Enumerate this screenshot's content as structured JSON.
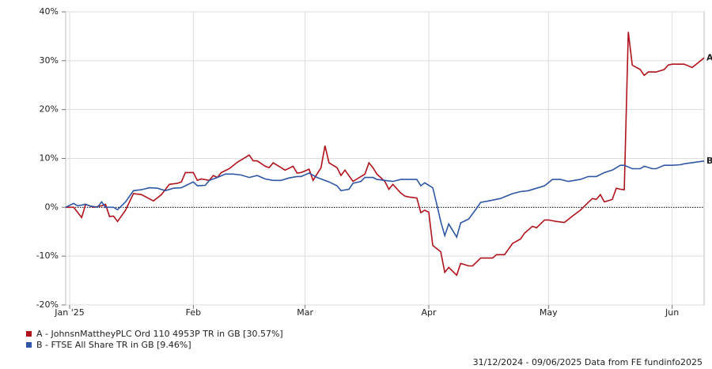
{
  "chart_data": {
    "type": "line",
    "xlim": [
      0,
      160
    ],
    "xticks": [
      {
        "value": 1,
        "label": "Jan '25"
      },
      {
        "value": 32,
        "label": "Feb"
      },
      {
        "value": 60,
        "label": "Mar"
      },
      {
        "value": 91,
        "label": "Apr"
      },
      {
        "value": 121,
        "label": "May"
      },
      {
        "value": 152,
        "label": "Jun"
      }
    ],
    "ylim": [
      -20,
      40
    ],
    "yticks": [
      {
        "value": -20,
        "label": "-20%"
      },
      {
        "value": -10,
        "label": "-10%"
      },
      {
        "value": 0,
        "label": "0%"
      },
      {
        "value": 10,
        "label": "10%"
      },
      {
        "value": 20,
        "label": "20%"
      },
      {
        "value": 30,
        "label": "30%"
      },
      {
        "value": 40,
        "label": "40%"
      }
    ],
    "grid": true,
    "series": [
      {
        "name": "A - JohnsnMattheyPLC Ord 110 4953P TR in GB [30.57%]",
        "tag": "A",
        "color": "#b0121b",
        "x": [
          0,
          2,
          4,
          5,
          6,
          7,
          9,
          10,
          11,
          12,
          13,
          15,
          17,
          19,
          22,
          24,
          26,
          28,
          29,
          30,
          32,
          33,
          34,
          36,
          37,
          38,
          39,
          41,
          43,
          45,
          46,
          47,
          48,
          50,
          51,
          52,
          54,
          55,
          57,
          58,
          59,
          61,
          62,
          64,
          65,
          66,
          68,
          69,
          70,
          72,
          73,
          75,
          76,
          77,
          78,
          80,
          81,
          82,
          84,
          85,
          86,
          88,
          89,
          90,
          91,
          92,
          94,
          95,
          96,
          98,
          99,
          101,
          102,
          104,
          105,
          107,
          108,
          110,
          112,
          114,
          115,
          117,
          118,
          120,
          121,
          123,
          125,
          127,
          129,
          131,
          132,
          133,
          134,
          135,
          137,
          138,
          139,
          140,
          141,
          142,
          144,
          145,
          146,
          148,
          150,
          151,
          152,
          154,
          155,
          157,
          160
        ],
        "values": [
          0,
          0,
          -2.1,
          0.6,
          0.3,
          0,
          0.3,
          0.6,
          -1.9,
          -1.8,
          -2.9,
          -0.6,
          2.8,
          2.6,
          1.3,
          2.6,
          4.7,
          4.9,
          5.2,
          7.1,
          7.1,
          5.5,
          5.8,
          5.5,
          6.5,
          6.1,
          7.1,
          7.9,
          9.2,
          10.2,
          10.7,
          9.5,
          9.5,
          8.4,
          8.1,
          9.1,
          8.1,
          7.6,
          8.4,
          7.0,
          7.1,
          7.8,
          5.5,
          8.1,
          12.6,
          9.1,
          8.1,
          6.5,
          7.6,
          5.3,
          5.8,
          6.8,
          9.1,
          8.1,
          6.8,
          5.3,
          3.7,
          4.7,
          2.9,
          2.3,
          2.1,
          1.9,
          -1.1,
          -0.6,
          -1.0,
          -7.8,
          -9.1,
          -13.3,
          -12.3,
          -13.9,
          -11.5,
          -12.0,
          -12.0,
          -10.4,
          -10.4,
          -10.4,
          -9.7,
          -9.7,
          -7.4,
          -6.5,
          -5.3,
          -3.9,
          -4.2,
          -2.6,
          -2.6,
          -2.9,
          -3.1,
          -1.8,
          -0.6,
          1.0,
          1.8,
          1.6,
          2.6,
          1.1,
          1.6,
          3.9,
          3.7,
          3.6,
          35.9,
          29.1,
          28.2,
          27.0,
          27.7,
          27.7,
          28.2,
          29.1,
          29.3,
          29.3,
          29.3,
          28.6,
          30.57
        ]
      },
      {
        "name": "B - FTSE All Share TR in GB [9.46%]",
        "tag": "B",
        "color": "#2f56a5",
        "x": [
          0,
          2,
          3,
          5,
          6,
          8,
          9,
          10,
          12,
          13,
          15,
          17,
          19,
          21,
          23,
          25,
          27,
          29,
          30,
          32,
          33,
          35,
          36,
          38,
          40,
          42,
          44,
          46,
          48,
          50,
          52,
          54,
          56,
          58,
          59,
          61,
          63,
          64,
          66,
          68,
          69,
          71,
          72,
          74,
          75,
          77,
          78,
          80,
          82,
          84,
          86,
          88,
          89,
          90,
          92,
          93,
          94,
          95,
          96,
          98,
          99,
          101,
          103,
          104,
          106,
          109,
          112,
          114,
          116,
          118,
          120,
          122,
          124,
          126,
          129,
          131,
          133,
          135,
          137,
          139,
          140,
          142,
          144,
          145,
          147,
          148,
          150,
          152,
          154,
          155,
          160
        ],
        "values": [
          0,
          0.8,
          0.3,
          0.6,
          0.3,
          0,
          1.1,
          0,
          0,
          -0.5,
          1.1,
          3.4,
          3.6,
          4.0,
          3.9,
          3.4,
          3.9,
          4.0,
          4.4,
          5.2,
          4.4,
          4.5,
          5.5,
          6.1,
          6.8,
          6.8,
          6.6,
          6.1,
          6.5,
          5.8,
          5.5,
          5.5,
          6.0,
          6.3,
          6.3,
          7.0,
          6.1,
          5.8,
          5.2,
          4.4,
          3.4,
          3.7,
          4.9,
          5.3,
          6.1,
          6.1,
          5.7,
          5.5,
          5.3,
          5.7,
          5.7,
          5.7,
          4.4,
          5.0,
          4.0,
          0.6,
          -2.9,
          -5.8,
          -3.4,
          -6.1,
          -3.2,
          -2.4,
          -0.2,
          1.0,
          1.3,
          1.8,
          2.8,
          3.2,
          3.4,
          3.9,
          4.4,
          5.7,
          5.7,
          5.3,
          5.7,
          6.3,
          6.3,
          7.1,
          7.6,
          8.6,
          8.6,
          7.9,
          7.9,
          8.4,
          7.9,
          7.9,
          8.6,
          8.6,
          8.7,
          8.9,
          9.46
        ]
      }
    ],
    "footer": "31/12/2024 - 09/06/2025 Data from FE fundinfo2025"
  }
}
